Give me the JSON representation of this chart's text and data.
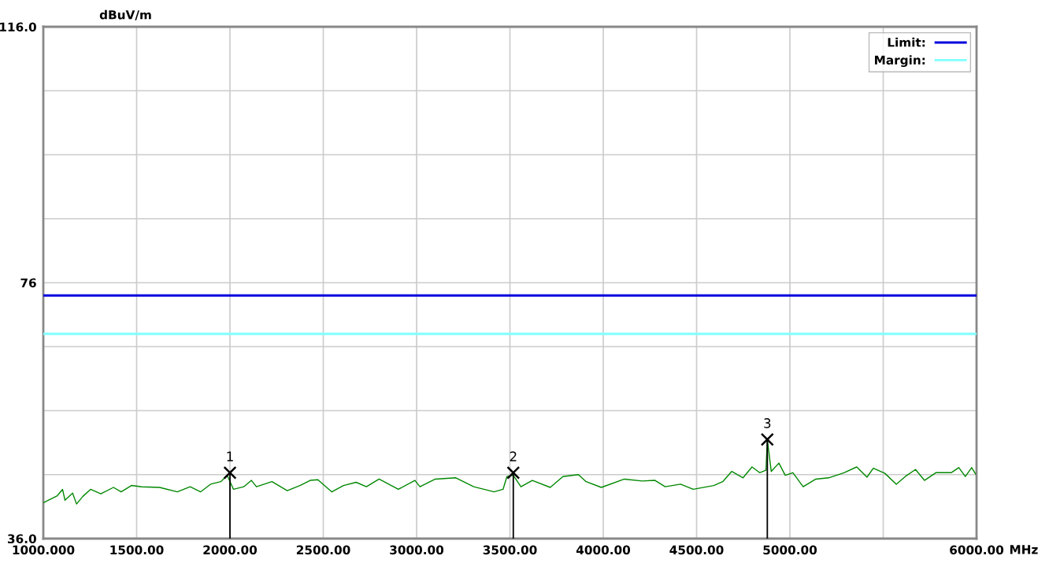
{
  "chart_data": {
    "type": "line",
    "xlabel": "MHz",
    "ylabel": "dBuV/m",
    "xlim": [
      1000,
      6000
    ],
    "ylim": [
      36,
      116
    ],
    "xticks": [
      {
        "value": 1000,
        "label": "1000.000"
      },
      {
        "value": 1500,
        "label": "1500.00"
      },
      {
        "value": 2000,
        "label": "2000.00"
      },
      {
        "value": 2500,
        "label": "2500.00"
      },
      {
        "value": 3000,
        "label": "3000.00"
      },
      {
        "value": 3500,
        "label": "3500.00"
      },
      {
        "value": 4000,
        "label": "4000.00"
      },
      {
        "value": 4500,
        "label": "4500.00"
      },
      {
        "value": 5000,
        "label": "5000.00"
      },
      {
        "value": 5500,
        "label": null
      },
      {
        "value": 6000,
        "label": "6000.00"
      }
    ],
    "yticks": [
      {
        "value": 36,
        "label": "36.0"
      },
      {
        "value": 46,
        "label": null
      },
      {
        "value": 56,
        "label": null
      },
      {
        "value": 66,
        "label": null
      },
      {
        "value": 76,
        "label": "76"
      },
      {
        "value": 86,
        "label": null
      },
      {
        "value": 96,
        "label": null
      },
      {
        "value": 106,
        "label": null
      },
      {
        "value": 116,
        "label": "116.0"
      }
    ],
    "grid": true,
    "legend": "top right",
    "line_style": "solid",
    "series": [
      {
        "name": "Limit:",
        "color": "#0000dd",
        "x": [
          1000,
          6000
        ],
        "values": [
          74,
          74
        ]
      },
      {
        "name": "Margin:",
        "color": "#80ffff",
        "x": [
          1000,
          6000
        ],
        "values": [
          68,
          68
        ]
      },
      {
        "color": "#008800",
        "x": [
          1000,
          1075,
          1103,
          1116,
          1157,
          1178,
          1212,
          1253,
          1308,
          1376,
          1417,
          1472,
          1527,
          1623,
          1718,
          1787,
          1842,
          1896,
          1951,
          1985,
          2019,
          2074,
          2115,
          2142,
          2225,
          2307,
          2375,
          2430,
          2471,
          2546,
          2608,
          2676,
          2731,
          2799,
          2902,
          2991,
          3018,
          3100,
          3210,
          3306,
          3415,
          3463,
          3484,
          3518,
          3559,
          3620,
          3716,
          3784,
          3867,
          3908,
          3990,
          4113,
          4209,
          4277,
          4332,
          4414,
          4482,
          4592,
          4640,
          4688,
          4749,
          4797,
          4838,
          4872,
          4879,
          4900,
          4941,
          4975,
          5016,
          5071,
          5139,
          5208,
          5290,
          5358,
          5413,
          5447,
          5509,
          5570,
          5618,
          5673,
          5721,
          5782,
          5864,
          5905,
          5940,
          5974,
          5995
        ],
        "values": [
          41.6,
          42.7,
          43.7,
          42.0,
          43.1,
          41.4,
          42.6,
          43.7,
          43.0,
          44.0,
          43.3,
          44.3,
          44.1,
          44.0,
          43.3,
          44.1,
          43.3,
          44.5,
          44.9,
          45.9,
          43.7,
          44.1,
          45.1,
          44.1,
          44.9,
          43.5,
          44.3,
          45.1,
          45.2,
          43.3,
          44.3,
          44.8,
          44.1,
          45.3,
          43.7,
          45.1,
          44.1,
          45.3,
          45.5,
          44.1,
          43.3,
          43.7,
          45.7,
          45.9,
          44.1,
          45.1,
          44.0,
          45.7,
          46.0,
          44.9,
          44.0,
          45.3,
          45.0,
          45.1,
          44.1,
          44.5,
          43.7,
          44.3,
          44.9,
          46.5,
          45.5,
          47.2,
          46.3,
          46.7,
          51.5,
          46.5,
          47.8,
          45.9,
          46.3,
          44.1,
          45.3,
          45.5,
          46.3,
          47.2,
          45.6,
          47.0,
          46.2,
          44.5,
          45.7,
          46.8,
          45.1,
          46.3,
          46.3,
          47.1,
          45.7,
          47.1,
          46.1
        ]
      },
      {
        "type": "lollipop",
        "marker": "cross",
        "color": "#000000",
        "x": [
          2000,
          3518,
          4879
        ],
        "values": [
          46.3,
          46.3,
          51.5
        ]
      }
    ],
    "annotations": [
      {
        "text": "1",
        "x": 2000,
        "y": 46.3
      },
      {
        "text": "2",
        "x": 3518,
        "y": 46.3
      },
      {
        "text": "3",
        "x": 4879,
        "y": 51.5
      }
    ]
  }
}
